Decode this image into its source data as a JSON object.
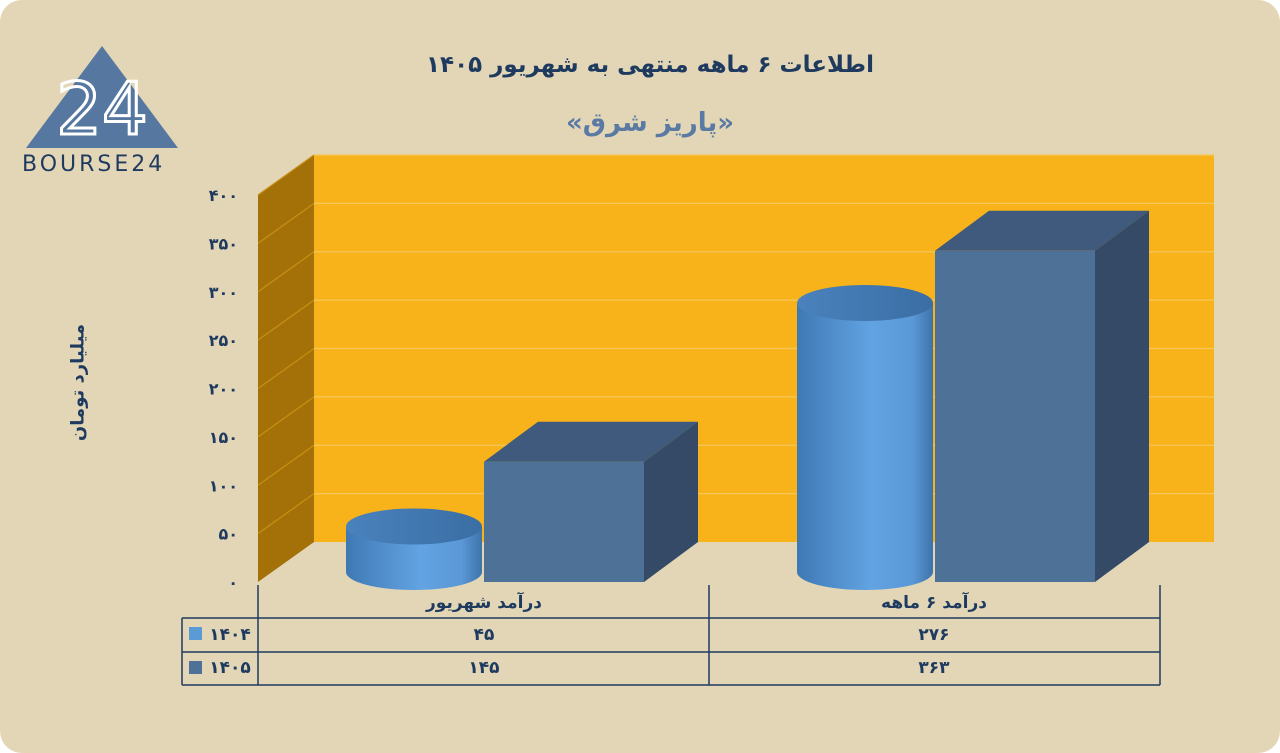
{
  "page": {
    "title": "اطلاعات ۶ ماهه منتهی به شهریور ۱۴۰۵",
    "subtitle": "«پاریز شرق»",
    "ylabel": "میلیارد تومان",
    "logo_text": "BOURSE24",
    "logo_mark": "24"
  },
  "chart_data": {
    "type": "bar",
    "title": "اطلاعات ۶ ماهه منتهی به شهریور ۱۴۰۵",
    "subtitle": "«پاریز شرق»",
    "ylabel": "میلیارد تومان",
    "ylim": [
      0,
      400
    ],
    "y_tick_labels": [
      "۰",
      "۵۰",
      "۱۰۰",
      "۱۵۰",
      "۲۰۰",
      "۲۵۰",
      "۳۰۰",
      "۳۵۰",
      "۴۰۰"
    ],
    "categories": [
      "درآمد شهریور",
      "درآمد ۶ ماهه"
    ],
    "series": [
      {
        "name": "۱۴۰۴",
        "values": [
          45,
          276
        ],
        "value_labels": [
          "۴۵",
          "۲۷۶"
        ],
        "shape": "cylinder",
        "color": "#5b9bd5"
      },
      {
        "name": "۱۴۰۵",
        "values": [
          145,
          363
        ],
        "value_labels": [
          "۱۴۵",
          "۳۶۳"
        ],
        "shape": "box",
        "color": "#4e7198"
      }
    ],
    "grid": true,
    "legend": "data-table"
  },
  "colors": {
    "background": "#e2d6b7",
    "plot_back": "#f8b31a",
    "plot_side": "#a47109",
    "title": "#1f3a5f",
    "subtitle": "#5b7aa3"
  }
}
